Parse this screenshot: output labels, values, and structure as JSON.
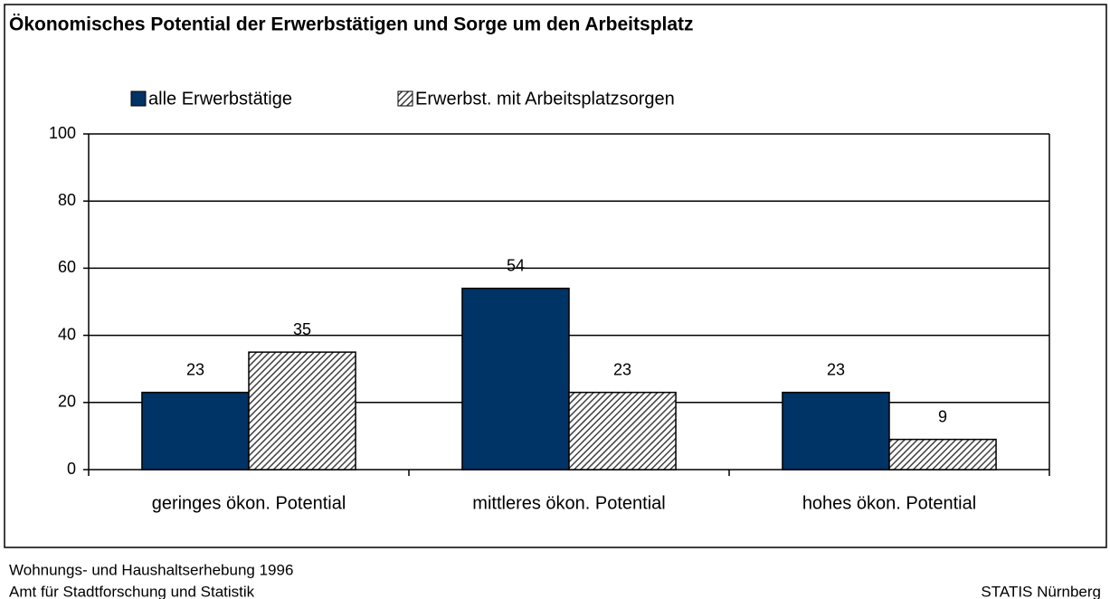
{
  "chart_data": {
    "type": "bar",
    "title": "Ökonomisches Potential der Erwerbstätigen und Sorge um den Arbeitsplatz",
    "categories": [
      "geringes ökon. Potential",
      "mittleres ökon. Potential",
      "hohes ökon. Potential"
    ],
    "series": [
      {
        "name": "alle Erwerbstätige",
        "color": "#003366",
        "values": [
          23,
          54,
          23
        ]
      },
      {
        "name": "Erwerbst. mit Arbeitsplatzsorgen",
        "color": "#404040",
        "hatch": true,
        "values": [
          35,
          23,
          9
        ]
      }
    ],
    "ylim": [
      0,
      100
    ],
    "yticks": [
      0,
      20,
      40,
      60,
      80,
      100
    ],
    "grid": true,
    "legend": "top",
    "source": [
      "Wohnungs- und Haushaltserhebung 1996",
      "Amt für Stadtforschung und Statistik"
    ],
    "credit": "STATIS Nürnberg"
  }
}
